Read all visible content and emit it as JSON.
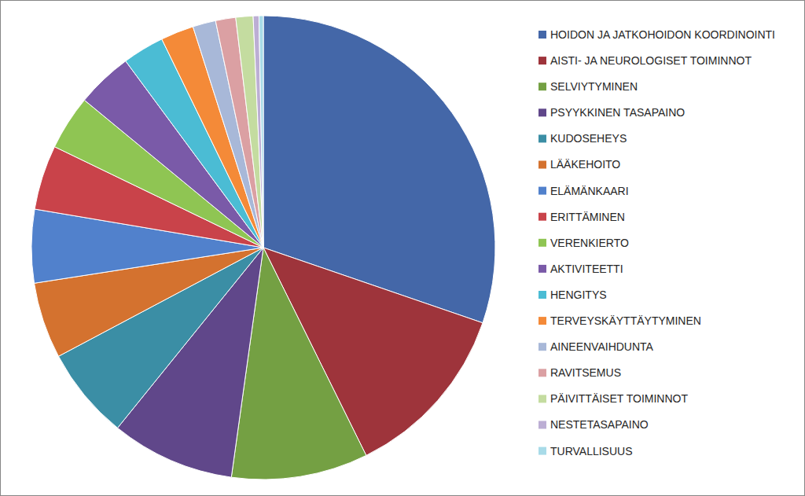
{
  "chart_data": {
    "type": "pie",
    "categories": [
      "HOIDON JA JATKOHOIDON KOORDINOINTI",
      "AISTI- JA NEUROLOGISET TOIMINNOT",
      "SELVIYTYMINEN",
      "PSYYKKINEN TASAPAINO",
      "KUDOSEHEYS",
      "LÄÄKEHOITO",
      "ELÄMÄNKAARI",
      "ERITTÄMINEN",
      "VERENKIERTO",
      "AKTIVITEETTI",
      "HENGITYS",
      "TERVEYSKÄYTTÄYTYMINEN",
      "AINEENVAIHDUNTA",
      "RAVITSEMUS",
      "PÄIVITTÄISET TOIMINNOT",
      "NESTETASAPAINO",
      "TURVALLISUUS"
    ],
    "values": [
      30.2,
      12.4,
      9.5,
      8.6,
      6.4,
      5.3,
      5.1,
      4.5,
      3.8,
      3.9,
      2.9,
      2.3,
      1.6,
      1.4,
      1.2,
      0.4,
      0.3
    ],
    "colors": [
      "#4467a8",
      "#9e343b",
      "#74a043",
      "#60478a",
      "#3b8ea5",
      "#d4722f",
      "#5181cc",
      "#c9434a",
      "#8fc553",
      "#7a5aa8",
      "#4bbcd4",
      "#f48a38",
      "#a8b8d8",
      "#dba0a3",
      "#c4dca0",
      "#bcaed4",
      "#a8dbe8"
    ],
    "legend": "right"
  }
}
